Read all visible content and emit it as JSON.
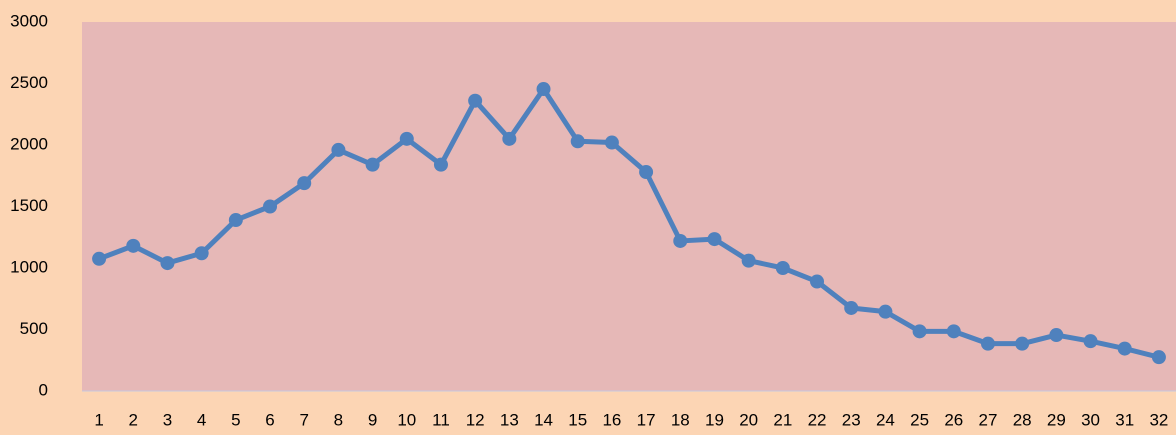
{
  "chart_data": {
    "type": "line",
    "categories": [
      "1",
      "2",
      "3",
      "4",
      "5",
      "6",
      "7",
      "8",
      "9",
      "10",
      "11",
      "12",
      "13",
      "14",
      "15",
      "16",
      "17",
      "18",
      "19",
      "20",
      "21",
      "22",
      "23",
      "24",
      "25",
      "26",
      "27",
      "28",
      "29",
      "30",
      "31",
      "32"
    ],
    "series": [
      {
        "color": "#4f81bd",
        "values": [
          1075,
          1180,
          1040,
          1120,
          1390,
          1500,
          1690,
          1960,
          1840,
          2050,
          1840,
          2360,
          2050,
          2455,
          2030,
          2020,
          1780,
          1220,
          1235,
          1060,
          1000,
          890,
          675,
          645,
          485,
          485,
          385,
          385,
          455,
          405,
          345,
          275
        ]
      }
    ],
    "ylim": [
      0,
      3000
    ],
    "yticks": [
      0,
      500,
      1000,
      1500,
      2000,
      2500,
      3000
    ],
    "grid": false
  }
}
